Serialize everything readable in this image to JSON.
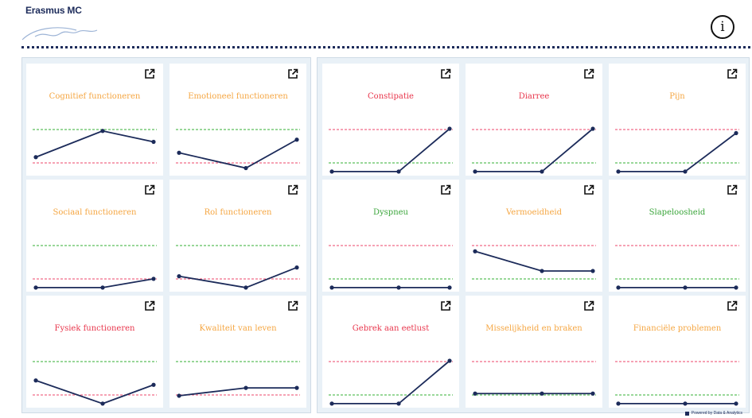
{
  "header": {
    "brand": "Erasmus MC",
    "info_icon": "info-icon",
    "info_symbol": "i"
  },
  "colors": {
    "orange": "#f5a642",
    "red": "#e8364c",
    "green": "#3aa53a",
    "navy": "#1c2b5a",
    "dash_red": "#f06a86",
    "dash_green": "#5cbf5c"
  },
  "tiles": [
    {
      "title": "Cognitief functioneren",
      "color": "orange",
      "values": [
        0.35,
        0.95,
        0.7
      ],
      "upper": "green",
      "lower": "red"
    },
    {
      "title": "Emotioneel functioneren",
      "color": "orange",
      "values": [
        0.45,
        0.1,
        0.75
      ],
      "upper": "green",
      "lower": "red"
    },
    {
      "title": "Sociaal functioneren",
      "color": "orange",
      "values": [
        0.02,
        0.02,
        0.22
      ],
      "upper": "green",
      "lower": "red"
    },
    {
      "title": "Rol functioneren",
      "color": "orange",
      "values": [
        0.28,
        0.02,
        0.48
      ],
      "upper": "green",
      "lower": "red"
    },
    {
      "title": "Fysiek functioneren",
      "color": "red",
      "values": [
        0.55,
        0.02,
        0.45
      ],
      "upper": "green",
      "lower": "red"
    },
    {
      "title": "Kwaliteit van leven",
      "color": "orange",
      "values": [
        0.2,
        0.38,
        0.38
      ],
      "upper": "green",
      "lower": "red"
    },
    {
      "title": "Constipatie",
      "color": "red",
      "values": [
        0.02,
        0.02,
        1.0
      ],
      "upper": "red",
      "lower": "green"
    },
    {
      "title": "Diarree",
      "color": "red",
      "values": [
        0.02,
        0.02,
        1.0
      ],
      "upper": "red",
      "lower": "green"
    },
    {
      "title": "Pijn",
      "color": "orange",
      "values": [
        0.02,
        0.02,
        0.9
      ],
      "upper": "red",
      "lower": "green"
    },
    {
      "title": "Dyspneu",
      "color": "green",
      "values": [
        0.02,
        0.02,
        0.02
      ],
      "upper": "red",
      "lower": "green"
    },
    {
      "title": "Vermoeidheid",
      "color": "orange",
      "values": [
        0.85,
        0.4,
        0.4
      ],
      "upper": "red",
      "lower": "green"
    },
    {
      "title": "Slapeloosheid",
      "color": "green",
      "values": [
        0.02,
        0.02,
        0.02
      ],
      "upper": "red",
      "lower": "green"
    },
    {
      "title": "Gebrek aan eetlust",
      "color": "red",
      "values": [
        0.02,
        0.02,
        1.0
      ],
      "upper": "red",
      "lower": "green"
    },
    {
      "title": "Misselijkheid en braken",
      "color": "orange",
      "values": [
        0.25,
        0.25,
        0.25
      ],
      "upper": "red",
      "lower": "green"
    },
    {
      "title": "Financiële problemen",
      "color": "orange",
      "values": [
        0.02,
        0.02,
        0.02
      ],
      "upper": "red",
      "lower": "green"
    }
  ],
  "footer": {
    "text": "Powered by Data & Analytics"
  }
}
